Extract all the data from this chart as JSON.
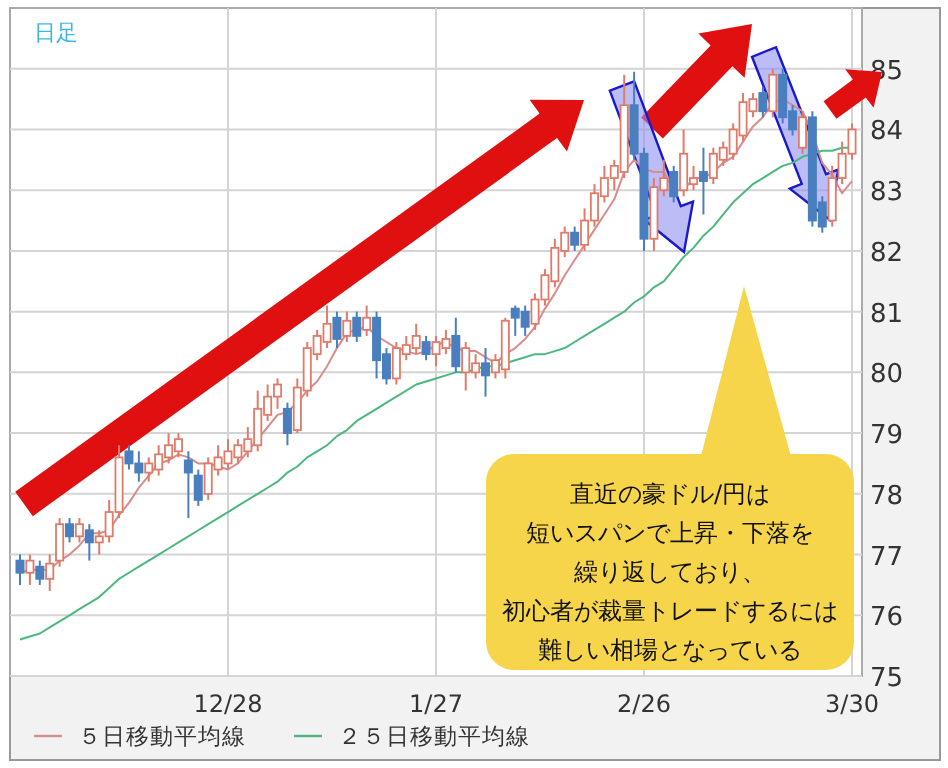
{
  "chart_data": {
    "type": "candlestick",
    "title": "日足",
    "categories": [
      null,
      null,
      null,
      null,
      null,
      null,
      null,
      null,
      null,
      null,
      null,
      null,
      null,
      null,
      null,
      null,
      null,
      null,
      null,
      null,
      null,
      "12/28",
      null,
      null,
      null,
      null,
      null,
      null,
      null,
      null,
      null,
      null,
      null,
      null,
      null,
      null,
      null,
      null,
      null,
      null,
      null,
      null,
      "1/27",
      null,
      null,
      null,
      null,
      null,
      null,
      null,
      null,
      null,
      null,
      null,
      null,
      null,
      null,
      null,
      null,
      null,
      null,
      null,
      null,
      "2/26",
      null,
      null,
      null,
      null,
      null,
      null,
      null,
      null,
      null,
      null,
      null,
      null,
      null,
      null,
      null,
      null,
      null,
      null,
      null,
      null,
      "3/30"
    ],
    "ohlc": [
      [
        76.9,
        77.0,
        76.5,
        76.7
      ],
      [
        76.7,
        77.0,
        76.5,
        76.9
      ],
      [
        76.8,
        76.9,
        76.5,
        76.6
      ],
      [
        76.6,
        77.0,
        76.4,
        76.85
      ],
      [
        76.9,
        77.6,
        76.8,
        77.5
      ],
      [
        77.5,
        77.6,
        77.2,
        77.3
      ],
      [
        77.3,
        77.6,
        77.2,
        77.5
      ],
      [
        77.4,
        77.5,
        76.9,
        77.2
      ],
      [
        77.2,
        77.4,
        77.0,
        77.3
      ],
      [
        77.3,
        77.9,
        77.2,
        77.7
      ],
      [
        77.7,
        78.8,
        77.6,
        78.6
      ],
      [
        78.7,
        78.8,
        78.4,
        78.5
      ],
      [
        78.5,
        78.7,
        78.2,
        78.35
      ],
      [
        78.35,
        78.6,
        78.2,
        78.5
      ],
      [
        78.4,
        78.8,
        78.3,
        78.65
      ],
      [
        78.6,
        79.0,
        78.5,
        78.8
      ],
      [
        78.7,
        79.0,
        78.6,
        78.9
      ],
      [
        78.55,
        78.7,
        77.6,
        78.35
      ],
      [
        78.3,
        78.4,
        77.8,
        77.9
      ],
      [
        78.0,
        78.6,
        77.9,
        78.5
      ],
      [
        78.4,
        78.8,
        78.3,
        78.6
      ],
      [
        78.5,
        78.9,
        78.4,
        78.7
      ],
      [
        78.6,
        78.9,
        78.5,
        78.8
      ],
      [
        78.7,
        79.1,
        78.6,
        78.9
      ],
      [
        78.8,
        79.7,
        78.7,
        79.4
      ],
      [
        79.3,
        79.8,
        79.2,
        79.6
      ],
      [
        79.6,
        79.9,
        79.4,
        79.8
      ],
      [
        79.4,
        79.5,
        78.8,
        79.0
      ],
      [
        79.05,
        79.9,
        79.0,
        79.75
      ],
      [
        79.7,
        80.5,
        79.6,
        80.4
      ],
      [
        80.3,
        80.7,
        80.2,
        80.6
      ],
      [
        80.5,
        81.1,
        80.4,
        80.8
      ],
      [
        80.9,
        81.0,
        80.4,
        80.55
      ],
      [
        80.6,
        81.0,
        80.5,
        80.85
      ],
      [
        80.9,
        81.0,
        80.5,
        80.6
      ],
      [
        80.7,
        81.1,
        80.6,
        80.9
      ],
      [
        80.9,
        81.0,
        79.9,
        80.2
      ],
      [
        80.3,
        80.4,
        79.8,
        79.9
      ],
      [
        79.9,
        80.5,
        79.8,
        80.4
      ],
      [
        80.3,
        80.6,
        80.2,
        80.45
      ],
      [
        80.4,
        80.8,
        80.3,
        80.6
      ],
      [
        80.5,
        80.6,
        80.2,
        80.3
      ],
      [
        80.3,
        80.6,
        80.1,
        80.5
      ],
      [
        80.4,
        80.7,
        80.3,
        80.55
      ],
      [
        80.6,
        80.9,
        80.0,
        80.1
      ],
      [
        80.0,
        80.5,
        79.7,
        80.4
      ],
      [
        80.0,
        80.3,
        79.9,
        80.15
      ],
      [
        80.15,
        80.4,
        79.6,
        79.95
      ],
      [
        80.0,
        80.3,
        79.9,
        80.2
      ],
      [
        80.05,
        80.9,
        79.9,
        80.85
      ],
      [
        81.05,
        81.1,
        80.6,
        80.9
      ],
      [
        81.0,
        81.1,
        80.6,
        80.75
      ],
      [
        80.8,
        81.3,
        80.7,
        81.2
      ],
      [
        81.2,
        81.7,
        81.1,
        81.6
      ],
      [
        81.5,
        82.2,
        81.4,
        82.05
      ],
      [
        82.0,
        82.4,
        81.9,
        82.3
      ],
      [
        82.3,
        82.4,
        82.0,
        82.1
      ],
      [
        82.1,
        82.7,
        82.0,
        82.5
      ],
      [
        82.5,
        83.1,
        82.4,
        82.95
      ],
      [
        82.9,
        83.4,
        82.8,
        83.2
      ],
      [
        83.2,
        83.5,
        83.0,
        83.4
      ],
      [
        83.3,
        84.9,
        83.2,
        84.4
      ],
      [
        84.4,
        84.95,
        83.5,
        83.6
      ],
      [
        83.6,
        83.7,
        82.0,
        82.2
      ],
      [
        82.2,
        83.2,
        82.0,
        83.05
      ],
      [
        83.0,
        83.5,
        82.9,
        83.2
      ],
      [
        83.3,
        83.4,
        82.8,
        82.9
      ],
      [
        83.0,
        84.0,
        82.9,
        83.6
      ],
      [
        83.1,
        83.4,
        83.0,
        83.2
      ],
      [
        83.3,
        83.7,
        82.6,
        83.15
      ],
      [
        83.2,
        83.7,
        83.1,
        83.6
      ],
      [
        83.5,
        83.8,
        83.4,
        83.7
      ],
      [
        83.6,
        84.1,
        83.5,
        84.0
      ],
      [
        83.9,
        84.6,
        83.8,
        84.45
      ],
      [
        84.3,
        84.6,
        84.2,
        84.5
      ],
      [
        84.6,
        84.7,
        84.2,
        84.3
      ],
      [
        84.3,
        85.0,
        84.2,
        84.9
      ],
      [
        84.9,
        85.0,
        84.1,
        84.2
      ],
      [
        84.3,
        84.4,
        83.9,
        84.0
      ],
      [
        83.7,
        84.3,
        83.6,
        84.2
      ],
      [
        84.2,
        84.3,
        82.4,
        82.5
      ],
      [
        82.8,
        82.9,
        82.3,
        82.4
      ],
      [
        82.5,
        83.4,
        82.4,
        83.2
      ],
      [
        83.2,
        83.8,
        83.1,
        83.6
      ],
      [
        83.6,
        84.1,
        83.5,
        84.0
      ]
    ],
    "series": [
      {
        "name": "５日移動平均線",
        "type": "line",
        "color": "#d98c8c",
        "values": [
          76.7,
          76.75,
          76.75,
          76.75,
          76.9,
          77.0,
          77.15,
          77.35,
          77.35,
          77.4,
          77.65,
          77.85,
          78.1,
          78.3,
          78.5,
          78.55,
          78.65,
          78.6,
          78.5,
          78.5,
          78.45,
          78.4,
          78.5,
          78.7,
          78.9,
          79.1,
          79.3,
          79.35,
          79.5,
          79.7,
          79.85,
          80.1,
          80.4,
          80.65,
          80.7,
          80.75,
          80.6,
          80.5,
          80.4,
          80.35,
          80.3,
          80.35,
          80.45,
          80.5,
          80.4,
          80.35,
          80.35,
          80.25,
          80.15,
          80.3,
          80.4,
          80.55,
          80.75,
          81.05,
          81.3,
          81.6,
          81.85,
          82.1,
          82.35,
          82.6,
          82.85,
          83.3,
          83.5,
          83.35,
          83.3,
          83.3,
          83.0,
          83.0,
          83.2,
          83.2,
          83.3,
          83.45,
          83.55,
          83.8,
          84.05,
          84.2,
          84.45,
          84.5,
          84.4,
          84.3,
          83.95,
          83.45,
          83.25,
          82.95,
          83.15
        ]
      },
      {
        "name": "２５日移動平均線",
        "type": "line",
        "color": "#4cb87f",
        "values": [
          75.6,
          75.65,
          75.7,
          75.8,
          75.9,
          76.0,
          76.1,
          76.2,
          76.3,
          76.45,
          76.6,
          76.7,
          76.8,
          76.9,
          77.0,
          77.1,
          77.2,
          77.3,
          77.4,
          77.5,
          77.6,
          77.7,
          77.8,
          77.9,
          78.0,
          78.1,
          78.2,
          78.35,
          78.45,
          78.6,
          78.7,
          78.8,
          78.95,
          79.05,
          79.2,
          79.3,
          79.4,
          79.5,
          79.6,
          79.7,
          79.8,
          79.85,
          79.9,
          79.95,
          80.0,
          80.0,
          80.05,
          80.1,
          80.1,
          80.15,
          80.2,
          80.25,
          80.3,
          80.3,
          80.35,
          80.4,
          80.5,
          80.6,
          80.7,
          80.8,
          80.9,
          81.0,
          81.15,
          81.25,
          81.4,
          81.5,
          81.7,
          81.9,
          82.05,
          82.25,
          82.4,
          82.6,
          82.8,
          82.95,
          83.1,
          83.2,
          83.3,
          83.4,
          83.45,
          83.55,
          83.6,
          83.65,
          83.65,
          83.7,
          83.7
        ]
      }
    ],
    "ylim": [
      75,
      86
    ],
    "yticks": [
      75,
      76,
      77,
      78,
      79,
      80,
      81,
      82,
      83,
      84,
      85
    ],
    "grid": true,
    "legend": "bottom",
    "annotations": [
      "直近の豪ドル/円は",
      "短いスパンで上昇・下落を",
      "繰り返しており、",
      "初心者が裁量トレードするには",
      "難しい相場となっている"
    ]
  }
}
